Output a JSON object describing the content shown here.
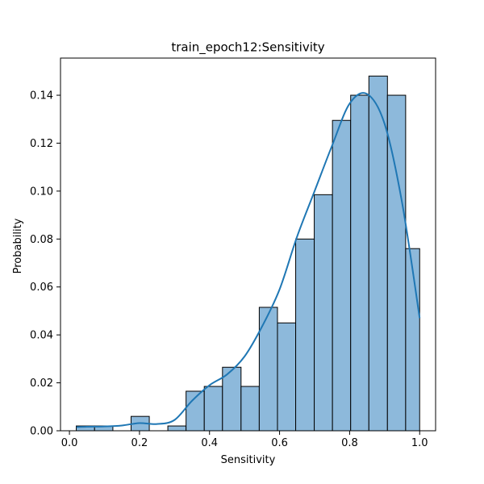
{
  "chart_data": {
    "type": "bar",
    "title": "train_epoch12:Sensitivity",
    "xlabel": "Sensitivity",
    "ylabel": "Probability",
    "xlim": [
      -0.0255,
      1.0455
    ],
    "ylim": [
      0,
      0.1555
    ],
    "xticks": [
      0.0,
      0.2,
      0.4,
      0.6,
      0.8,
      1.0
    ],
    "xtick_labels": [
      "0.0",
      "0.2",
      "0.4",
      "0.6",
      "0.8",
      "1.0"
    ],
    "yticks": [
      0.0,
      0.02,
      0.04,
      0.06,
      0.08,
      0.1,
      0.12,
      0.14
    ],
    "ytick_labels": [
      "0.00",
      "0.02",
      "0.04",
      "0.06",
      "0.08",
      "0.10",
      "0.12",
      "0.14"
    ],
    "bins": [
      {
        "x0": 0.0195,
        "x1": 0.0718,
        "value": 0.002
      },
      {
        "x0": 0.0718,
        "x1": 0.124,
        "value": 0.002
      },
      {
        "x0": 0.124,
        "x1": 0.176,
        "value": 0.0
      },
      {
        "x0": 0.176,
        "x1": 0.228,
        "value": 0.006
      },
      {
        "x0": 0.228,
        "x1": 0.281,
        "value": 0.0
      },
      {
        "x0": 0.281,
        "x1": 0.333,
        "value": 0.002
      },
      {
        "x0": 0.333,
        "x1": 0.385,
        "value": 0.0165
      },
      {
        "x0": 0.385,
        "x1": 0.437,
        "value": 0.0185
      },
      {
        "x0": 0.437,
        "x1": 0.49,
        "value": 0.0265
      },
      {
        "x0": 0.49,
        "x1": 0.542,
        "value": 0.0185
      },
      {
        "x0": 0.542,
        "x1": 0.594,
        "value": 0.0515
      },
      {
        "x0": 0.594,
        "x1": 0.646,
        "value": 0.045
      },
      {
        "x0": 0.646,
        "x1": 0.699,
        "value": 0.08
      },
      {
        "x0": 0.699,
        "x1": 0.751,
        "value": 0.0985
      },
      {
        "x0": 0.751,
        "x1": 0.803,
        "value": 0.1295
      },
      {
        "x0": 0.803,
        "x1": 0.855,
        "value": 0.14
      },
      {
        "x0": 0.855,
        "x1": 0.908,
        "value": 0.148
      },
      {
        "x0": 0.908,
        "x1": 0.96,
        "value": 0.14
      },
      {
        "x0": 0.96,
        "x1": 1.0,
        "value": 0.076
      }
    ],
    "kde": {
      "x": [
        0.02,
        0.05,
        0.1,
        0.15,
        0.2,
        0.25,
        0.3,
        0.35,
        0.4,
        0.45,
        0.5,
        0.55,
        0.6,
        0.65,
        0.7,
        0.75,
        0.8,
        0.85,
        0.9,
        0.95,
        1.0
      ],
      "y": [
        0.0015,
        0.0017,
        0.0018,
        0.0022,
        0.0032,
        0.0028,
        0.0045,
        0.0125,
        0.019,
        0.0235,
        0.031,
        0.0435,
        0.059,
        0.081,
        0.1,
        0.119,
        0.1365,
        0.1405,
        0.128,
        0.095,
        0.047
      ]
    },
    "colors": {
      "bar_fill": "#8db9db",
      "bar_edge": "#000000",
      "kde_line": "#1f77b4"
    },
    "grid": false,
    "legend": "none"
  }
}
